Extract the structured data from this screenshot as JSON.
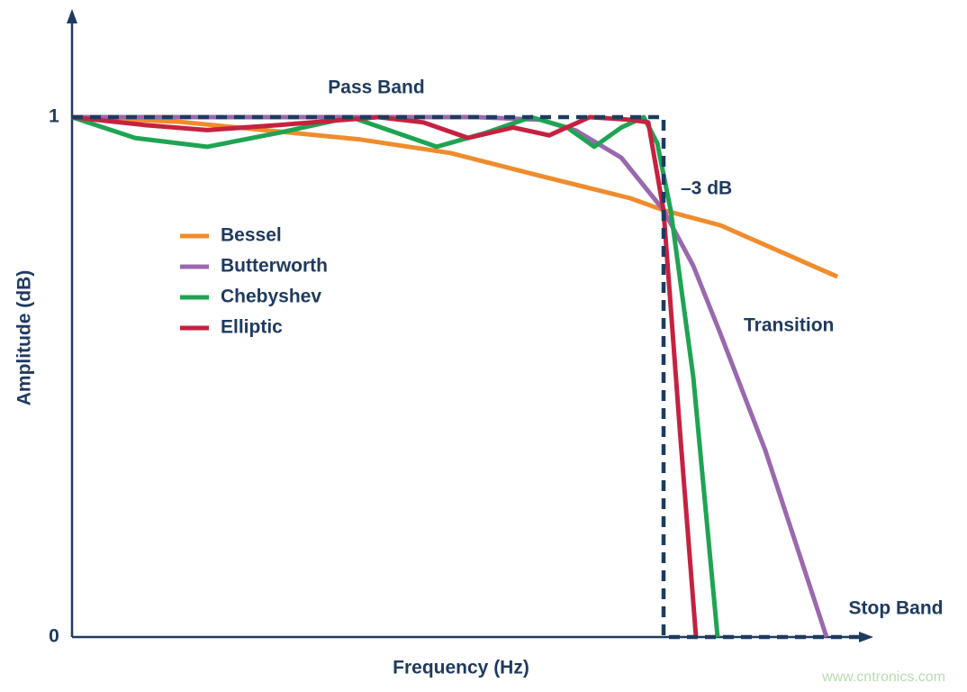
{
  "chart_data": {
    "type": "line",
    "xlabel": "Frequency (Hz)",
    "ylabel": "Amplitude (dB)",
    "xlim": [
      0,
      880
    ],
    "ylim": [
      0,
      1.2
    ],
    "yticks": [
      0,
      1
    ],
    "grid": false,
    "legend": "upper left",
    "series": [
      {
        "name": "Bessel",
        "color": "#f08c2c",
        "x": [
          0,
          120,
          220,
          320,
          420,
          520,
          620,
          657,
          720,
          850
        ],
        "values": [
          1.0,
          0.991,
          0.974,
          0.957,
          0.931,
          0.887,
          0.844,
          0.821,
          0.792,
          0.693
        ]
      },
      {
        "name": "Butterworth",
        "color": "#9a68ae",
        "x": [
          0,
          250,
          450,
          520,
          560,
          610,
          657,
          690,
          720,
          770,
          838
        ],
        "values": [
          1.0,
          1.0,
          1.0,
          0.995,
          0.974,
          0.922,
          0.821,
          0.714,
          0.584,
          0.359,
          0
        ]
      },
      {
        "name": "Chebyshev",
        "color": "#1ea453",
        "x": [
          0,
          70,
          150,
          230,
          310,
          360,
          405,
          460,
          510,
          550,
          580,
          610,
          635,
          650,
          665,
          690,
          717
        ],
        "values": [
          1.0,
          0.96,
          0.943,
          0.97,
          1.0,
          0.97,
          0.943,
          0.97,
          1.0,
          0.98,
          0.943,
          0.98,
          1.0,
          0.95,
          0.82,
          0.5,
          0
        ]
      },
      {
        "name": "Elliptic",
        "color": "#c62140",
        "x": [
          0,
          80,
          150,
          230,
          340,
          390,
          440,
          490,
          530,
          575,
          620,
          640,
          657,
          675,
          693
        ],
        "values": [
          1.0,
          0.985,
          0.975,
          0.985,
          1.0,
          0.99,
          0.96,
          0.98,
          0.965,
          1.0,
          0.995,
          0.99,
          0.82,
          0.4,
          0
        ]
      }
    ],
    "ideal": {
      "color": "#1e3a5f",
      "x": [
        0,
        657,
        657,
        875
      ],
      "values": [
        1,
        1,
        0,
        0
      ]
    },
    "annotations": [
      "Pass Band",
      "–3 dB",
      "Transition",
      "Stop Band"
    ],
    "watermark": "www.cntronics.com"
  }
}
